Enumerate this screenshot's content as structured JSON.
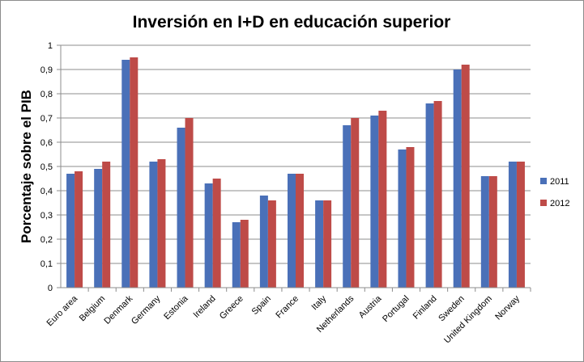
{
  "chart_data": {
    "type": "bar",
    "title": "Inversión en I+D en educación superior",
    "xlabel": "",
    "ylabel": "Porcentaje sobre el PIB",
    "ylim": [
      0,
      1
    ],
    "yticks": [
      "0",
      "0,1",
      "0,2",
      "0,3",
      "0,4",
      "0,5",
      "0,6",
      "0,7",
      "0,8",
      "0,9",
      "1"
    ],
    "grid": true,
    "legend_position": "right",
    "categories": [
      "Euro area",
      "Belgium",
      "Denmark",
      "Germany",
      "Estonia",
      "Ireland",
      "Greece",
      "Spain",
      "France",
      "Italy",
      "Netherlands",
      "Austria",
      "Portugal",
      "Finland",
      "Sweden",
      "United Kingdom",
      "Norway"
    ],
    "series": [
      {
        "name": "2011",
        "color": "#4a70b8",
        "values": [
          0.47,
          0.49,
          0.94,
          0.52,
          0.66,
          0.43,
          0.27,
          0.38,
          0.47,
          0.36,
          0.67,
          0.71,
          0.57,
          0.76,
          0.9,
          0.46,
          0.52
        ]
      },
      {
        "name": "2012",
        "color": "#be4b48",
        "values": [
          0.48,
          0.52,
          0.95,
          0.53,
          0.7,
          0.45,
          0.28,
          0.36,
          0.47,
          0.36,
          0.7,
          0.73,
          0.58,
          0.77,
          0.92,
          0.46,
          0.52
        ]
      }
    ]
  }
}
